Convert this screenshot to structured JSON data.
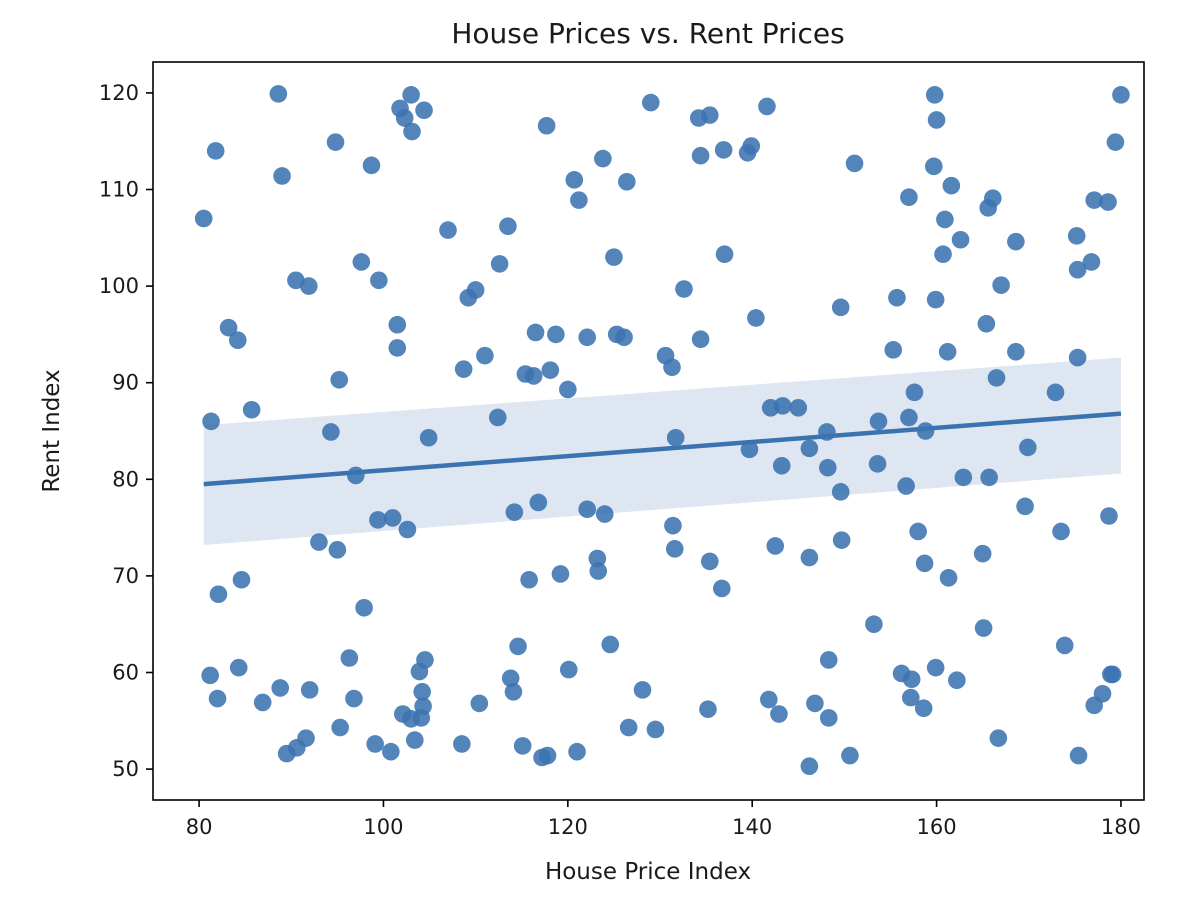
{
  "chart_data": {
    "type": "scatter",
    "title": "House Prices vs. Rent Prices",
    "xlabel": "House Price Index",
    "ylabel": "Rent Index",
    "xlim": [
      75,
      182.5
    ],
    "ylim": [
      46.8,
      123.2
    ],
    "xticks": [
      80,
      100,
      120,
      140,
      160,
      180
    ],
    "yticks": [
      50,
      60,
      70,
      80,
      90,
      100,
      110,
      120
    ],
    "grid": false,
    "colors": {
      "points": "#3b73b0",
      "fit": "#3b73b0",
      "band": "#c8d6e8"
    },
    "regression": {
      "x": [
        80.5,
        180
      ],
      "y": [
        79.5,
        86.8
      ],
      "ci_lower": [
        73.2,
        80.6
      ],
      "ci_upper": [
        85.6,
        92.6
      ]
    },
    "points": [
      [
        80.5,
        107.0
      ],
      [
        81.8,
        114.0
      ],
      [
        81.3,
        86.0
      ],
      [
        81.2,
        59.7
      ],
      [
        82.0,
        57.3
      ],
      [
        82.1,
        68.1
      ],
      [
        83.2,
        95.7
      ],
      [
        84.2,
        94.4
      ],
      [
        84.3,
        60.5
      ],
      [
        84.6,
        69.6
      ],
      [
        85.7,
        87.2
      ],
      [
        86.9,
        56.9
      ],
      [
        88.6,
        119.9
      ],
      [
        89.0,
        111.4
      ],
      [
        88.8,
        58.4
      ],
      [
        89.5,
        51.6
      ],
      [
        90.6,
        52.2
      ],
      [
        91.6,
        53.2
      ],
      [
        90.5,
        100.6
      ],
      [
        91.9,
        100.0
      ],
      [
        92.0,
        58.2
      ],
      [
        93.0,
        73.5
      ],
      [
        94.8,
        114.9
      ],
      [
        94.3,
        84.9
      ],
      [
        95.0,
        72.7
      ],
      [
        95.2,
        90.3
      ],
      [
        95.3,
        54.3
      ],
      [
        96.3,
        61.5
      ],
      [
        96.8,
        57.3
      ],
      [
        97.0,
        80.4
      ],
      [
        97.6,
        102.5
      ],
      [
        97.9,
        66.7
      ],
      [
        98.7,
        112.5
      ],
      [
        99.1,
        52.6
      ],
      [
        99.4,
        75.8
      ],
      [
        99.5,
        100.6
      ],
      [
        100.8,
        51.8
      ],
      [
        101.0,
        76.0
      ],
      [
        101.5,
        96.0
      ],
      [
        101.5,
        93.6
      ],
      [
        101.8,
        118.4
      ],
      [
        102.1,
        55.7
      ],
      [
        102.3,
        117.4
      ],
      [
        102.6,
        74.8
      ],
      [
        103.0,
        119.8
      ],
      [
        103.1,
        116.0
      ],
      [
        103.0,
        55.2
      ],
      [
        103.4,
        53.0
      ],
      [
        103.9,
        60.1
      ],
      [
        104.1,
        55.3
      ],
      [
        104.3,
        56.5
      ],
      [
        104.2,
        58.0
      ],
      [
        104.4,
        118.2
      ],
      [
        104.5,
        61.3
      ],
      [
        104.9,
        84.3
      ],
      [
        107.0,
        105.8
      ],
      [
        108.5,
        52.6
      ],
      [
        108.7,
        91.4
      ],
      [
        109.2,
        98.8
      ],
      [
        110.0,
        99.6
      ],
      [
        110.4,
        56.8
      ],
      [
        111.0,
        92.8
      ],
      [
        112.4,
        86.4
      ],
      [
        112.6,
        102.3
      ],
      [
        113.5,
        106.2
      ],
      [
        113.8,
        59.4
      ],
      [
        114.1,
        58.0
      ],
      [
        114.2,
        76.6
      ],
      [
        114.6,
        62.7
      ],
      [
        115.1,
        52.4
      ],
      [
        115.4,
        90.9
      ],
      [
        115.8,
        69.6
      ],
      [
        116.3,
        90.7
      ],
      [
        116.5,
        95.2
      ],
      [
        116.8,
        77.6
      ],
      [
        117.2,
        51.2
      ],
      [
        117.7,
        116.6
      ],
      [
        117.8,
        51.4
      ],
      [
        118.1,
        91.3
      ],
      [
        118.7,
        95.0
      ],
      [
        119.2,
        70.2
      ],
      [
        120.0,
        89.3
      ],
      [
        120.1,
        60.3
      ],
      [
        120.7,
        111.0
      ],
      [
        121.0,
        51.8
      ],
      [
        121.2,
        108.9
      ],
      [
        122.1,
        94.7
      ],
      [
        122.1,
        76.9
      ],
      [
        123.2,
        71.8
      ],
      [
        123.3,
        70.5
      ],
      [
        123.8,
        113.2
      ],
      [
        124.0,
        76.4
      ],
      [
        124.6,
        62.9
      ],
      [
        125.0,
        103.0
      ],
      [
        125.3,
        95.0
      ],
      [
        126.1,
        94.7
      ],
      [
        126.4,
        110.8
      ],
      [
        126.6,
        54.3
      ],
      [
        128.1,
        58.2
      ],
      [
        129.0,
        119.0
      ],
      [
        129.5,
        54.1
      ],
      [
        130.6,
        92.8
      ],
      [
        131.3,
        91.6
      ],
      [
        131.4,
        75.2
      ],
      [
        131.6,
        72.8
      ],
      [
        131.7,
        84.3
      ],
      [
        132.6,
        99.7
      ],
      [
        134.2,
        117.4
      ],
      [
        134.4,
        113.5
      ],
      [
        134.4,
        94.5
      ],
      [
        135.2,
        56.2
      ],
      [
        135.4,
        117.7
      ],
      [
        135.4,
        71.5
      ],
      [
        136.7,
        68.7
      ],
      [
        136.9,
        114.1
      ],
      [
        137.0,
        103.3
      ],
      [
        139.5,
        113.8
      ],
      [
        139.7,
        83.1
      ],
      [
        139.9,
        114.5
      ],
      [
        140.4,
        96.7
      ],
      [
        141.6,
        118.6
      ],
      [
        141.8,
        57.2
      ],
      [
        142.0,
        87.4
      ],
      [
        142.5,
        73.1
      ],
      [
        142.9,
        55.7
      ],
      [
        143.3,
        87.6
      ],
      [
        143.2,
        81.4
      ],
      [
        145.0,
        87.4
      ],
      [
        146.2,
        50.3
      ],
      [
        146.2,
        83.2
      ],
      [
        146.2,
        71.9
      ],
      [
        146.8,
        56.8
      ],
      [
        148.1,
        84.9
      ],
      [
        148.2,
        81.2
      ],
      [
        148.3,
        61.3
      ],
      [
        148.3,
        55.3
      ],
      [
        149.6,
        97.8
      ],
      [
        149.6,
        78.7
      ],
      [
        149.7,
        73.7
      ],
      [
        150.6,
        51.4
      ],
      [
        151.1,
        112.7
      ],
      [
        153.2,
        65.0
      ],
      [
        153.6,
        81.6
      ],
      [
        153.7,
        86.0
      ],
      [
        155.3,
        93.4
      ],
      [
        155.7,
        98.8
      ],
      [
        156.2,
        59.9
      ],
      [
        156.7,
        79.3
      ],
      [
        157.0,
        109.2
      ],
      [
        157.0,
        86.4
      ],
      [
        157.2,
        57.4
      ],
      [
        157.3,
        59.3
      ],
      [
        157.6,
        89.0
      ],
      [
        158.0,
        74.6
      ],
      [
        158.6,
        56.3
      ],
      [
        158.7,
        71.3
      ],
      [
        158.8,
        85.0
      ],
      [
        159.7,
        112.4
      ],
      [
        159.8,
        119.8
      ],
      [
        160.0,
        117.2
      ],
      [
        159.9,
        98.6
      ],
      [
        159.9,
        60.5
      ],
      [
        160.7,
        103.3
      ],
      [
        160.9,
        106.9
      ],
      [
        161.2,
        93.2
      ],
      [
        161.3,
        69.8
      ],
      [
        161.6,
        110.4
      ],
      [
        162.2,
        59.2
      ],
      [
        162.6,
        104.8
      ],
      [
        162.9,
        80.2
      ],
      [
        165.0,
        72.3
      ],
      [
        165.1,
        64.6
      ],
      [
        165.4,
        96.1
      ],
      [
        165.6,
        108.1
      ],
      [
        165.7,
        80.2
      ],
      [
        166.1,
        109.1
      ],
      [
        166.5,
        90.5
      ],
      [
        166.7,
        53.2
      ],
      [
        167.0,
        100.1
      ],
      [
        168.6,
        104.6
      ],
      [
        168.6,
        93.2
      ],
      [
        169.6,
        77.2
      ],
      [
        169.9,
        83.3
      ],
      [
        172.9,
        89.0
      ],
      [
        173.5,
        74.6
      ],
      [
        173.9,
        62.8
      ],
      [
        175.2,
        105.2
      ],
      [
        175.3,
        101.7
      ],
      [
        175.3,
        92.6
      ],
      [
        175.4,
        51.4
      ],
      [
        176.8,
        102.5
      ],
      [
        177.1,
        108.9
      ],
      [
        177.1,
        56.6
      ],
      [
        178.0,
        57.8
      ],
      [
        178.6,
        108.7
      ],
      [
        178.7,
        76.2
      ],
      [
        178.9,
        59.8
      ],
      [
        179.1,
        59.8
      ],
      [
        179.4,
        114.9
      ],
      [
        180.0,
        119.8
      ]
    ]
  }
}
